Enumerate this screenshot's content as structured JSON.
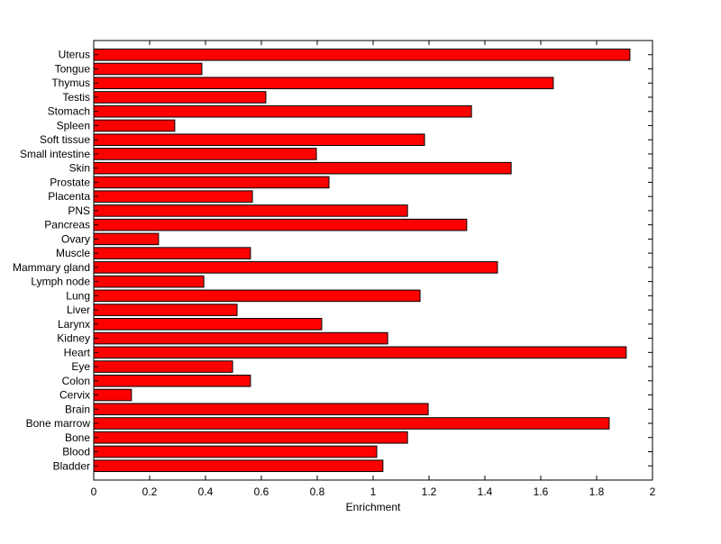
{
  "chart_data": {
    "type": "bar",
    "orientation": "horizontal",
    "title": "",
    "xlabel": "Enrichment",
    "ylabel": "",
    "xlim": [
      0,
      2
    ],
    "xticks": [
      0,
      0.2,
      0.4,
      0.6,
      0.8,
      1,
      1.2,
      1.4,
      1.6,
      1.8,
      2
    ],
    "xtick_labels": [
      "0",
      "0.2",
      "0.4",
      "0.6",
      "0.8",
      "1",
      "1.2",
      "1.4",
      "1.6",
      "1.8",
      "2"
    ],
    "grid": false,
    "bar_color": "#ff0000",
    "edge_color": "#000000",
    "categories": [
      "Bladder",
      "Blood",
      "Bone",
      "Bone marrow",
      "Brain",
      "Cervix",
      "Colon",
      "Eye",
      "Heart",
      "Kidney",
      "Larynx",
      "Liver",
      "Lung",
      "Lymph node",
      "Mammary gland",
      "Muscle",
      "Ovary",
      "Pancreas",
      "PNS",
      "Placenta",
      "Prostate",
      "Skin",
      "Small intestine",
      "Soft tissue",
      "Spleen",
      "Stomach",
      "Testis",
      "Thymus",
      "Tongue",
      "Uterus"
    ],
    "values": [
      1.035,
      1.013,
      1.123,
      1.845,
      1.197,
      0.135,
      0.561,
      0.497,
      1.906,
      1.052,
      0.816,
      0.513,
      1.168,
      0.394,
      1.445,
      0.561,
      0.232,
      1.335,
      1.123,
      0.568,
      0.842,
      1.494,
      0.797,
      1.184,
      0.29,
      1.352,
      0.616,
      1.645,
      0.387,
      1.919
    ]
  }
}
